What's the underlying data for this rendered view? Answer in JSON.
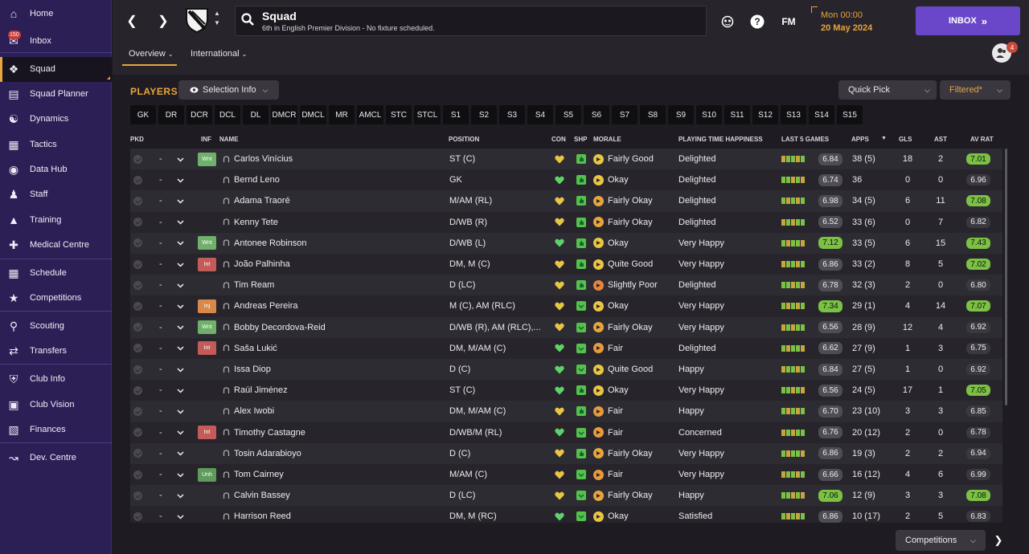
{
  "sidebar": {
    "items": [
      {
        "label": "Home",
        "icon": "home-icon"
      },
      {
        "label": "Inbox",
        "icon": "inbox-icon",
        "badge": "150"
      },
      {
        "label": "Squad",
        "icon": "squad-shirt-icon",
        "active": true
      },
      {
        "label": "Squad Planner",
        "icon": "clipboard-icon"
      },
      {
        "label": "Dynamics",
        "icon": "dynamics-icon"
      },
      {
        "label": "Tactics",
        "icon": "tactics-board-icon"
      },
      {
        "label": "Data Hub",
        "icon": "data-hub-icon"
      },
      {
        "label": "Staff",
        "icon": "staff-icon"
      },
      {
        "label": "Training",
        "icon": "training-cone-icon"
      },
      {
        "label": "Medical Centre",
        "icon": "medical-kit-icon"
      },
      {
        "label": "Schedule",
        "icon": "calendar-icon"
      },
      {
        "label": "Competitions",
        "icon": "trophy-icon"
      },
      {
        "label": "Scouting",
        "icon": "magnifier-icon"
      },
      {
        "label": "Transfers",
        "icon": "transfer-arrows-icon"
      },
      {
        "label": "Club Info",
        "icon": "shield-icon"
      },
      {
        "label": "Club Vision",
        "icon": "briefcase-icon"
      },
      {
        "label": "Finances",
        "icon": "money-icon"
      },
      {
        "label": "Dev. Centre",
        "icon": "dev-centre-icon"
      }
    ]
  },
  "header": {
    "title": "Squad",
    "subtitle": "6th in English Premier Division - No fixture scheduled.",
    "tabs": [
      "Overview",
      "International"
    ],
    "fm_label": "FM",
    "time": "Mon 00:00",
    "date": "20 May 2024",
    "inbox_label": "INBOX",
    "avatar_badge": "4"
  },
  "toolbar": {
    "section_title": "PLAYERS",
    "selection_info": "Selection Info",
    "quick_pick": "Quick Pick",
    "filtered": "Filtered*"
  },
  "position_filters": [
    "GK",
    "DR",
    "DCR",
    "DCL",
    "DL",
    "DMCR",
    "DMCL",
    "MR",
    "AMCL",
    "STC",
    "STCL",
    "S1",
    "S2",
    "S3",
    "S4",
    "S5",
    "S6",
    "S7",
    "S8",
    "S9",
    "S10",
    "S11",
    "S12",
    "S13",
    "S14",
    "S15"
  ],
  "columns": {
    "pkd": "PKD",
    "inf": "INF",
    "name": "NAME",
    "position": "POSITION",
    "con": "CON",
    "shp": "SHP",
    "morale": "MORALE",
    "pth": "PLAYING TIME HAPPINESS",
    "last5": "LAST 5 GAMES",
    "apps": "APPS",
    "gls": "GLS",
    "ast": "AST",
    "avrat": "AV RAT"
  },
  "players": [
    {
      "inf": "Wnt",
      "name": "Carlos Vinícius",
      "position": "ST (C)",
      "morale": "Fairly Good",
      "pth": "Delighted",
      "last5": "6.84",
      "apps": "38 (5)",
      "gls": "18",
      "ast": "2",
      "avrat": "7.01",
      "avhi": true,
      "l5hi": false
    },
    {
      "inf": "",
      "name": "Bernd Leno",
      "position": "GK",
      "morale": "Okay",
      "pth": "Delighted",
      "last5": "6.74",
      "apps": "36",
      "gls": "0",
      "ast": "0",
      "avrat": "6.96",
      "avhi": false,
      "l5hi": false
    },
    {
      "inf": "",
      "name": "Adama Traoré",
      "position": "M/AM (RL)",
      "morale": "Fairly Okay",
      "pth": "Delighted",
      "last5": "6.98",
      "apps": "34 (5)",
      "gls": "6",
      "ast": "11",
      "avrat": "7.08",
      "avhi": true,
      "l5hi": false
    },
    {
      "inf": "",
      "name": "Kenny Tete",
      "position": "D/WB (R)",
      "morale": "Fairly Okay",
      "pth": "Delighted",
      "last5": "6.52",
      "apps": "33 (6)",
      "gls": "0",
      "ast": "7",
      "avrat": "6.82",
      "avhi": false,
      "l5hi": false
    },
    {
      "inf": "Wnt",
      "name": "Antonee Robinson",
      "position": "D/WB (L)",
      "morale": "Okay",
      "pth": "Very Happy",
      "last5": "7.12",
      "apps": "33 (5)",
      "gls": "6",
      "ast": "15",
      "avrat": "7.43",
      "avhi": true,
      "l5hi": true
    },
    {
      "inf": "Int",
      "name": "João Palhinha",
      "position": "DM, M (C)",
      "morale": "Quite Good",
      "pth": "Very Happy",
      "last5": "6.86",
      "apps": "33 (2)",
      "gls": "8",
      "ast": "5",
      "avrat": "7.02",
      "avhi": true,
      "l5hi": false
    },
    {
      "inf": "",
      "name": "Tim Ream",
      "position": "D (LC)",
      "morale": "Slightly Poor",
      "pth": "Delighted",
      "last5": "6.78",
      "apps": "32 (3)",
      "gls": "2",
      "ast": "0",
      "avrat": "6.80",
      "avhi": false,
      "l5hi": false
    },
    {
      "inf": "Inj",
      "name": "Andreas Pereira",
      "position": "M (C), AM (RLC)",
      "morale": "Okay",
      "pth": "Very Happy",
      "last5": "7.34",
      "apps": "29 (1)",
      "gls": "4",
      "ast": "14",
      "avrat": "7.07",
      "avhi": true,
      "l5hi": true
    },
    {
      "inf": "Wnt",
      "name": "Bobby Decordova-Reid",
      "position": "D/WB (R), AM (RLC),...",
      "morale": "Fairly Okay",
      "pth": "Very Happy",
      "last5": "6.56",
      "apps": "28 (9)",
      "gls": "12",
      "ast": "4",
      "avrat": "6.92",
      "avhi": false,
      "l5hi": false
    },
    {
      "inf": "Int",
      "name": "Saša Lukić",
      "position": "DM, M/AM (C)",
      "morale": "Fair",
      "pth": "Delighted",
      "last5": "6.62",
      "apps": "27 (9)",
      "gls": "1",
      "ast": "3",
      "avrat": "6.75",
      "avhi": false,
      "l5hi": false
    },
    {
      "inf": "",
      "name": "Issa Diop",
      "position": "D (C)",
      "morale": "Quite Good",
      "pth": "Happy",
      "last5": "6.84",
      "apps": "27 (5)",
      "gls": "1",
      "ast": "0",
      "avrat": "6.92",
      "avhi": false,
      "l5hi": false
    },
    {
      "inf": "",
      "name": "Raúl Jiménez",
      "position": "ST (C)",
      "morale": "Okay",
      "pth": "Very Happy",
      "last5": "6.56",
      "apps": "24 (5)",
      "gls": "17",
      "ast": "1",
      "avrat": "7.05",
      "avhi": true,
      "l5hi": false
    },
    {
      "inf": "",
      "name": "Alex Iwobi",
      "position": "DM, M/AM (C)",
      "morale": "Fair",
      "pth": "Happy",
      "last5": "6.70",
      "apps": "23 (10)",
      "gls": "3",
      "ast": "3",
      "avrat": "6.85",
      "avhi": false,
      "l5hi": false
    },
    {
      "inf": "Int",
      "name": "Timothy Castagne",
      "position": "D/WB/M (RL)",
      "morale": "Fair",
      "pth": "Concerned",
      "last5": "6.76",
      "apps": "20 (12)",
      "gls": "2",
      "ast": "0",
      "avrat": "6.78",
      "avhi": false,
      "l5hi": false
    },
    {
      "inf": "",
      "name": "Tosin Adarabioyo",
      "position": "D (C)",
      "morale": "Fairly Okay",
      "pth": "Very Happy",
      "last5": "6.86",
      "apps": "19 (3)",
      "gls": "2",
      "ast": "2",
      "avrat": "6.94",
      "avhi": false,
      "l5hi": false
    },
    {
      "inf": "Unh",
      "name": "Tom Cairney",
      "position": "M/AM (C)",
      "morale": "Fair",
      "pth": "Very Happy",
      "last5": "6.66",
      "apps": "16 (12)",
      "gls": "4",
      "ast": "6",
      "avrat": "6.99",
      "avhi": false,
      "l5hi": false
    },
    {
      "inf": "",
      "name": "Calvin Bassey",
      "position": "D (LC)",
      "morale": "Fairly Okay",
      "pth": "Happy",
      "last5": "7.06",
      "apps": "12 (9)",
      "gls": "3",
      "ast": "3",
      "avrat": "7.08",
      "avhi": true,
      "l5hi": true
    },
    {
      "inf": "",
      "name": "Harrison Reed",
      "position": "DM, M (RC)",
      "morale": "Okay",
      "pth": "Satisfied",
      "last5": "6.86",
      "apps": "10 (17)",
      "gls": "2",
      "ast": "5",
      "avrat": "6.83",
      "avhi": false,
      "l5hi": false
    }
  ],
  "footer": {
    "competitions": "Competitions"
  },
  "colors": {
    "accent": "#e8a53c",
    "sidebar": "#2c1f56",
    "inbox_button": "#6a47c8",
    "rating_high": "#7bc143"
  }
}
